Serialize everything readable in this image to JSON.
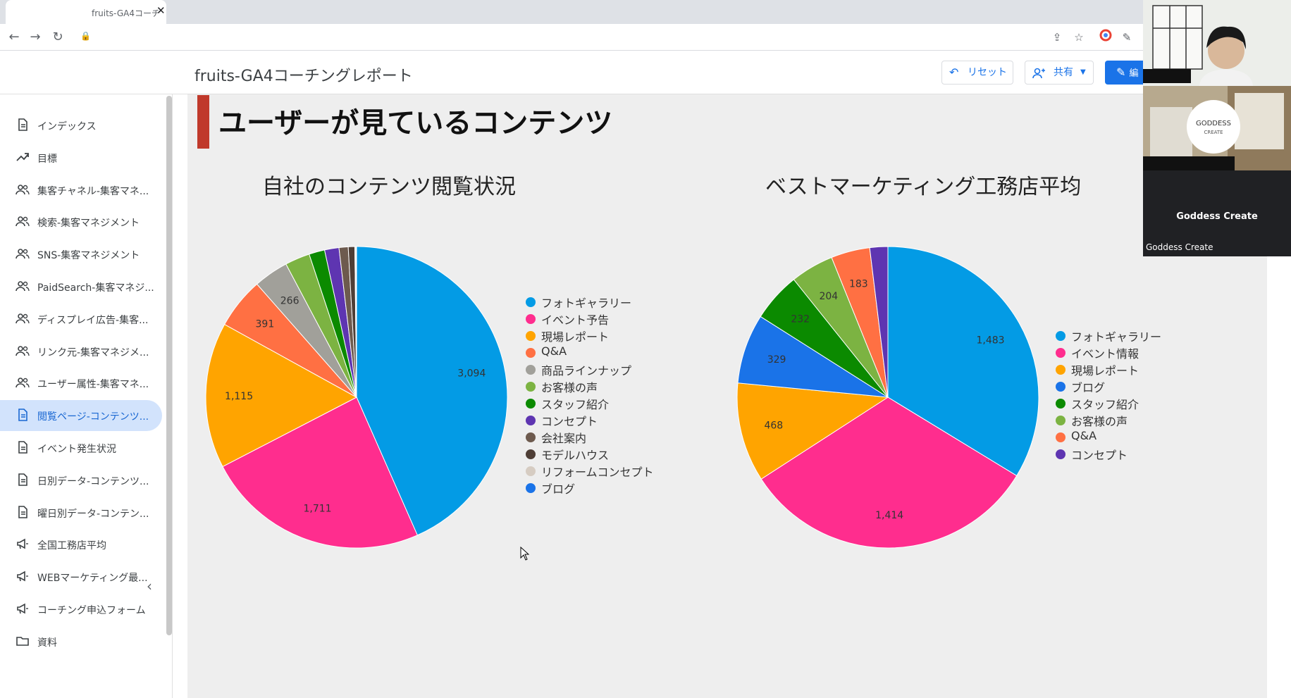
{
  "browser": {
    "tab_title": "fruits-GA4コーチ",
    "close_glyph": "✕"
  },
  "header": {
    "report_title": "fruits-GA4コーチングレポート",
    "reset_label": "リセット",
    "share_label": "共有",
    "edit_label": "編"
  },
  "sidebar": {
    "items": [
      {
        "label": "インデックス",
        "icon": "page-icon"
      },
      {
        "label": "目標",
        "icon": "trending-up-icon"
      },
      {
        "label": "集客チャネル-集客マネ...",
        "icon": "people-icon"
      },
      {
        "label": "検索-集客マネジメント",
        "icon": "people-icon"
      },
      {
        "label": "SNS-集客マネジメント",
        "icon": "people-icon"
      },
      {
        "label": "PaidSearch-集客マネジ...",
        "icon": "people-icon"
      },
      {
        "label": "ディスプレイ広告-集客...",
        "icon": "people-icon"
      },
      {
        "label": "リンク元-集客マネジメ...",
        "icon": "people-icon"
      },
      {
        "label": "ユーザー属性-集客マネ...",
        "icon": "people-icon"
      },
      {
        "label": "閲覧ページ-コンテンツ...",
        "icon": "page-icon",
        "active": true
      },
      {
        "label": "イベント発生状況",
        "icon": "page-icon"
      },
      {
        "label": "日別データ-コンテンツ...",
        "icon": "page-icon"
      },
      {
        "label": "曜日別データ-コンテン...",
        "icon": "page-icon"
      },
      {
        "label": "全国工務店平均",
        "icon": "megaphone-icon"
      },
      {
        "label": "WEBマーケティング最...",
        "icon": "megaphone-icon"
      },
      {
        "label": "コーチング申込フォーム",
        "icon": "megaphone-icon"
      },
      {
        "label": "資料",
        "icon": "folder-icon"
      }
    ]
  },
  "section": {
    "title": "ユーザーが見ているコンテンツ"
  },
  "colors": {
    "accent": "#1a73e8",
    "section_bar": "#c0392b"
  },
  "chart_data": [
    {
      "type": "pie",
      "title": "自社のコンテンツ閲覧状況",
      "slices": [
        {
          "label": "フォトギャラリー",
          "value": 3094,
          "display": "3,094",
          "color": "#039be5"
        },
        {
          "label": "イベント予告",
          "value": 1711,
          "display": "1,711",
          "color": "#ff2d8e"
        },
        {
          "label": "現場レポート",
          "value": 1115,
          "display": "1,115",
          "color": "#ffa400"
        },
        {
          "label": "Q&A",
          "value": 391,
          "display": "391",
          "color": "#ff7043"
        },
        {
          "label": "商品ラインナップ",
          "value": 266,
          "display": "266",
          "color": "#a1a09a"
        },
        {
          "label": "お客様の声",
          "value": 190,
          "display": "",
          "color": "#7cb342"
        },
        {
          "label": "スタッフ紹介",
          "value": 120,
          "display": "",
          "color": "#0b8a00"
        },
        {
          "label": "コンセプト",
          "value": 110,
          "display": "",
          "color": "#5e35b1"
        },
        {
          "label": "会社案内",
          "value": 70,
          "display": "",
          "color": "#6d5a4e"
        },
        {
          "label": "モデルハウス",
          "value": 50,
          "display": "",
          "color": "#4e3e36"
        },
        {
          "label": "リフォームコンセプト",
          "value": 8,
          "display": "",
          "color": "#d6ccc2"
        },
        {
          "label": "ブログ",
          "value": 5,
          "display": "",
          "color": "#1a73e8"
        }
      ]
    },
    {
      "type": "pie",
      "title": "ベストマーケティング工務店平均",
      "slices": [
        {
          "label": "フォトギャラリー",
          "value": 1483,
          "display": "1,483",
          "color": "#039be5"
        },
        {
          "label": "イベント情報",
          "value": 1414,
          "display": "1,414",
          "color": "#ff2d8e"
        },
        {
          "label": "現場レポート",
          "value": 468,
          "display": "468",
          "color": "#ffa400"
        },
        {
          "label": "ブログ",
          "value": 329,
          "display": "329",
          "color": "#1a73e8"
        },
        {
          "label": "スタッフ紹介",
          "value": 232,
          "display": "232",
          "color": "#0b8a00"
        },
        {
          "label": "お客様の声",
          "value": 204,
          "display": "204",
          "color": "#7cb342"
        },
        {
          "label": "Q&A",
          "value": 183,
          "display": "183",
          "color": "#ff7043"
        },
        {
          "label": "コンセプト",
          "value": 85,
          "display": "",
          "color": "#5e35b1"
        }
      ]
    }
  ],
  "video_call": {
    "participant_name": "Goddess Create",
    "participant_corner": "Goddess Create",
    "logo_line1": "GODDESS",
    "logo_line2": "CREATE"
  }
}
